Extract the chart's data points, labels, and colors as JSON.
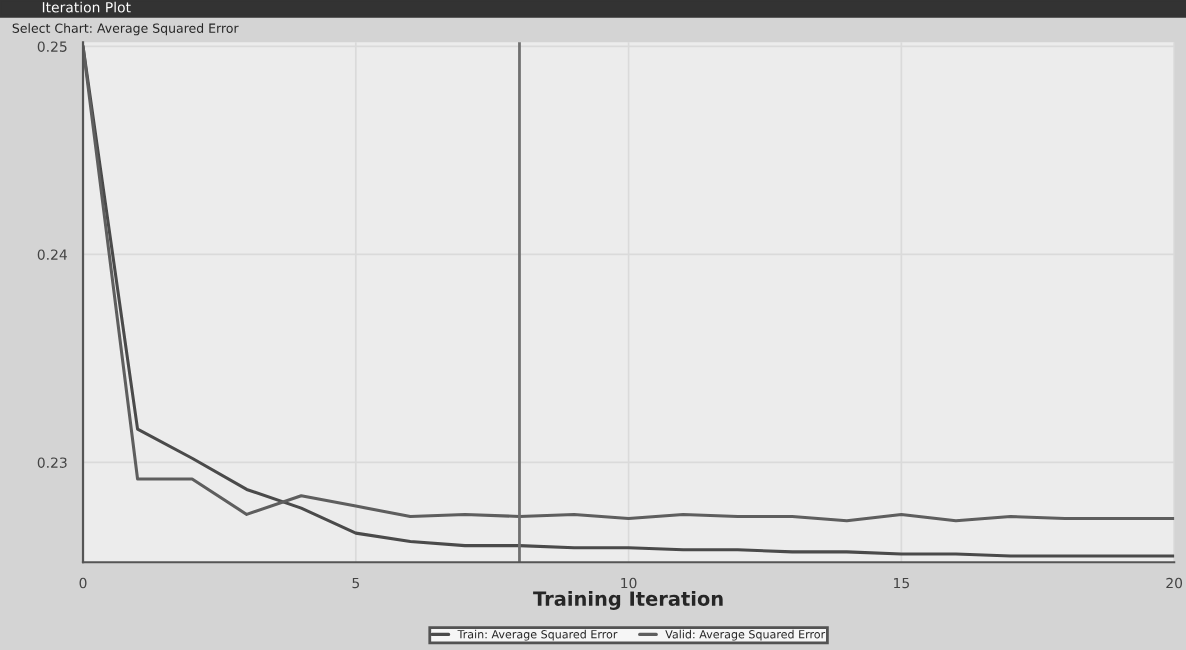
{
  "chart_data": {
    "type": "line",
    "title": "Iteration Plot",
    "xlabel": "Training Iteration",
    "annotations": [
      "Select Chart: Average Squared Error"
    ],
    "x": [
      0,
      1,
      2,
      3,
      4,
      5,
      6,
      7,
      8,
      9,
      10,
      11,
      12,
      13,
      14,
      15,
      16,
      17,
      18,
      19,
      20
    ],
    "series": [
      {
        "name": "Train: Average Squared Error",
        "color": "#4a4a4a",
        "values": [
          0.25,
          0.2316,
          0.2302,
          0.2287,
          0.2278,
          0.2266,
          0.2262,
          0.226,
          0.226,
          0.2259,
          0.2259,
          0.2258,
          0.2258,
          0.2257,
          0.2257,
          0.2256,
          0.2256,
          0.2255,
          0.2255,
          0.2255,
          0.2255
        ]
      },
      {
        "name": "Valid: Average Squared Error",
        "color": "#5e5e5e",
        "values": [
          0.25,
          0.2292,
          0.2292,
          0.2275,
          0.2284,
          0.2279,
          0.2274,
          0.2275,
          0.2274,
          0.2275,
          0.2273,
          0.2275,
          0.2274,
          0.2274,
          0.2272,
          0.2275,
          0.2272,
          0.2274,
          0.2273,
          0.2273,
          0.2273
        ]
      }
    ],
    "xlim": [
      0,
      20
    ],
    "xticks": [
      0,
      5,
      10,
      15,
      20
    ],
    "ylim": [
      0.2252,
      0.2502
    ],
    "yticks": [
      0.23,
      0.24,
      0.25
    ],
    "ref_lines": [
      {
        "axis": "x",
        "value": 8,
        "color": "#707070"
      }
    ],
    "grid": true,
    "legend": "bottom",
    "marker": "none",
    "line_style": "solid"
  }
}
